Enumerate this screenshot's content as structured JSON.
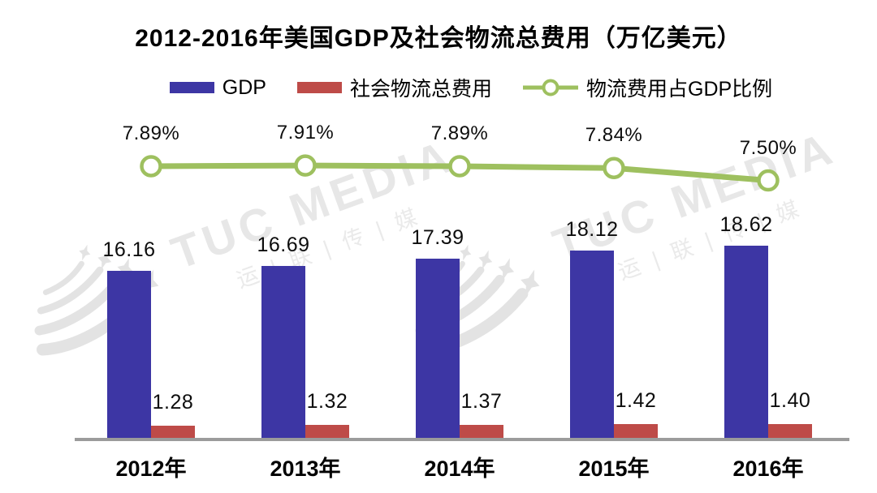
{
  "title": "2012-2016年美国GDP及社会物流总费用（万亿美元）",
  "watermark": {
    "brand": "TUC MEDIA",
    "subtitle": "运 | 联 | 传 | 媒"
  },
  "colors": {
    "gdp_bar": "#3D36A4",
    "logistics_bar": "#BE4B48",
    "ratio_line": "#9EC05F",
    "axis": "#9b9b9b",
    "watermark": "#e7e7e7"
  },
  "chart_data": {
    "type": "bar",
    "subtype": "combo-bar-line",
    "title": "2012-2016年美国GDP及社会物流总费用（万亿美元）",
    "unit": "万亿美元",
    "categories": [
      "2012年",
      "2013年",
      "2014年",
      "2015年",
      "2016年"
    ],
    "series": [
      {
        "name": "GDP",
        "type": "bar",
        "color": "#3D36A4",
        "values": [
          16.16,
          16.69,
          17.39,
          18.12,
          18.62
        ],
        "labels": [
          "16.16",
          "16.69",
          "17.39",
          "18.12",
          "18.62"
        ]
      },
      {
        "name": "社会物流总费用",
        "type": "bar",
        "color": "#BE4B48",
        "values": [
          1.28,
          1.32,
          1.37,
          1.42,
          1.4
        ],
        "labels": [
          "1.28",
          "1.32",
          "1.37",
          "1.42",
          "1.40"
        ]
      },
      {
        "name": "物流费用占GDP比例",
        "type": "line",
        "color": "#9EC05F",
        "marker": "open-circle",
        "values": [
          7.89,
          7.91,
          7.89,
          7.84,
          7.5
        ],
        "labels": [
          "7.89%",
          "7.91%",
          "7.89%",
          "7.84%",
          "7.50%"
        ]
      }
    ],
    "xlabel": "",
    "ylabel": "",
    "value_axis_visible": false,
    "grid": false,
    "legend_position": "top",
    "bar_axis_baseline": 0
  }
}
